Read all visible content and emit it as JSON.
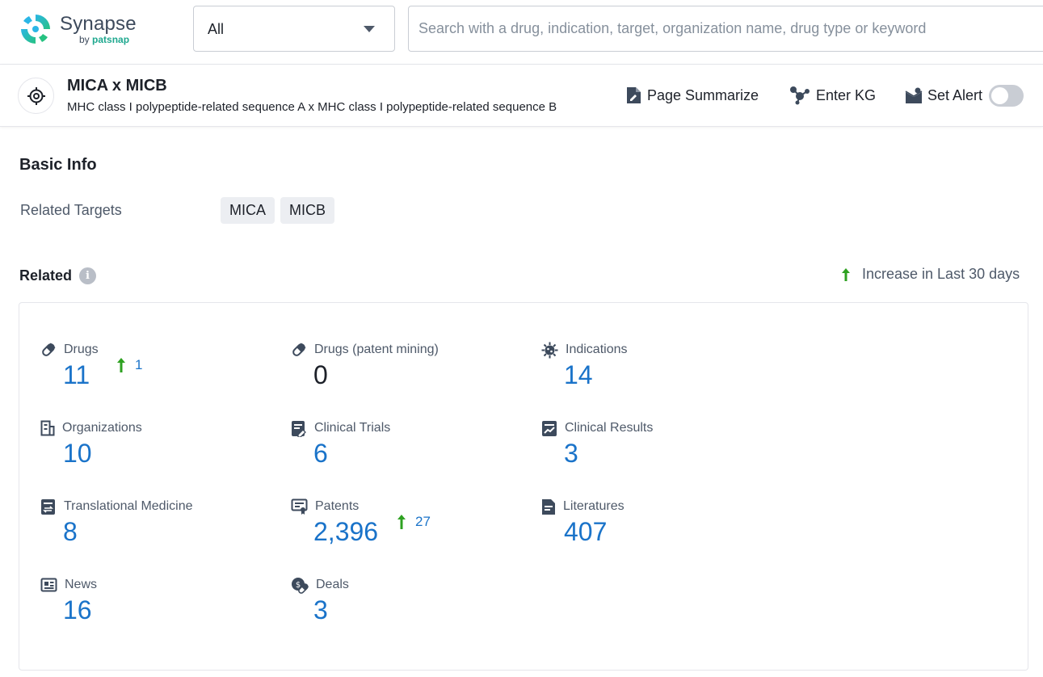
{
  "brand": {
    "name": "Synapse",
    "by_prefix": "by",
    "by_brand": "patsnap",
    "accent_color": "#1fa88f"
  },
  "search": {
    "category_value": "All",
    "placeholder": "Search with a drug, indication, target, organization name, drug type or keyword"
  },
  "entity": {
    "title": "MICA x MICB",
    "subtitle": "MHC class I polypeptide-related sequence A x MHC class I polypeptide-related sequence B",
    "icon": "target-icon"
  },
  "actions": {
    "page_summarize": "Page Summarize",
    "enter_kg": "Enter KG",
    "set_alert": "Set Alert",
    "set_alert_enabled": false
  },
  "basic_info": {
    "title": "Basic Info",
    "related_targets_label": "Related Targets",
    "related_targets": [
      "MICA",
      "MICB"
    ]
  },
  "related": {
    "title": "Related",
    "legend": "Increase in Last 30 days",
    "increase_color": "#2ea121",
    "value_color": "#1a73c9",
    "stats": [
      {
        "label": "Drugs",
        "value": "11",
        "increase": "1",
        "icon": "pill-icon"
      },
      {
        "label": "Drugs (patent mining)",
        "value": "0",
        "increase": "",
        "icon": "pill-icon"
      },
      {
        "label": "Indications",
        "value": "14",
        "increase": "",
        "icon": "virus-icon"
      },
      {
        "label": "Organizations",
        "value": "10",
        "increase": "",
        "icon": "building-icon"
      },
      {
        "label": "Clinical Trials",
        "value": "6",
        "increase": "",
        "icon": "clipboard-icon"
      },
      {
        "label": "Clinical Results",
        "value": "3",
        "increase": "",
        "icon": "chart-report-icon"
      },
      {
        "label": "Translational Medicine",
        "value": "8",
        "increase": "",
        "icon": "translational-icon"
      },
      {
        "label": "Patents",
        "value": "2,396",
        "increase": "27",
        "icon": "certificate-icon"
      },
      {
        "label": "Literatures",
        "value": "407",
        "increase": "",
        "icon": "document-icon"
      },
      {
        "label": "News",
        "value": "16",
        "increase": "",
        "icon": "newspaper-icon"
      },
      {
        "label": "Deals",
        "value": "3",
        "increase": "",
        "icon": "deal-icon"
      }
    ]
  }
}
